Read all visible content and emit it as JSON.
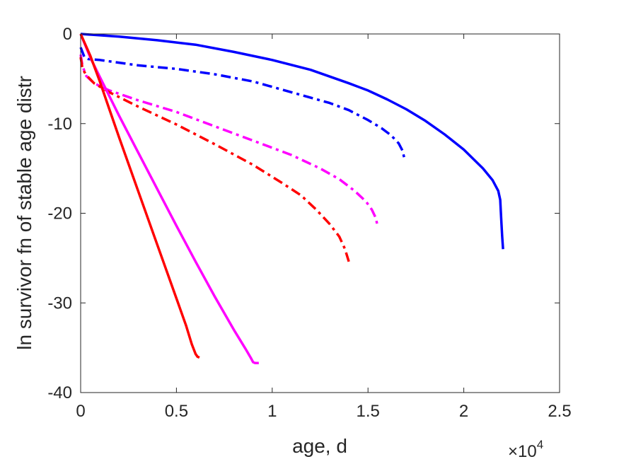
{
  "chart_data": {
    "type": "line",
    "xlabel": "age, d",
    "ylabel": "ln survivor fn of stable age distr",
    "x_exponent_label": "×10",
    "x_exponent_power": "4",
    "xlim": [
      0,
      25000
    ],
    "ylim": [
      -40,
      0
    ],
    "xticks": [
      0,
      5000,
      10000,
      15000,
      20000,
      25000
    ],
    "xtick_labels": [
      "0",
      "0.5",
      "1",
      "1.5",
      "2",
      "2.5"
    ],
    "yticks": [
      0,
      -10,
      -20,
      -30,
      -40
    ],
    "ytick_labels": [
      "0",
      "-10",
      "-20",
      "-30",
      "-40"
    ],
    "grid": false,
    "series": [
      {
        "color": "#0000ff",
        "style": "solid",
        "x": [
          0,
          2000,
          4000,
          6000,
          8000,
          10000,
          12000,
          14000,
          15000,
          16000,
          17000,
          18000,
          19000,
          20000,
          21000,
          21500,
          21800,
          21900,
          21950,
          22000,
          22050
        ],
        "y": [
          0,
          -0.3,
          -0.7,
          -1.2,
          -2.0,
          -2.9,
          -4.0,
          -5.5,
          -6.3,
          -7.3,
          -8.4,
          -9.7,
          -11.2,
          -12.9,
          -15.0,
          -16.3,
          -17.5,
          -18.5,
          -20.5,
          -22.5,
          -24.0
        ]
      },
      {
        "color": "#0000ff",
        "style": "dashdot",
        "x": [
          0,
          200,
          400,
          1000,
          3000,
          5000,
          7000,
          9000,
          11000,
          13000,
          14000,
          15000,
          15700,
          16200,
          16600,
          16800,
          16900
        ],
        "y": [
          -1.5,
          -2.6,
          -2.8,
          -2.9,
          -3.5,
          -3.9,
          -4.5,
          -5.3,
          -6.5,
          -7.7,
          -8.5,
          -9.6,
          -10.5,
          -11.3,
          -12.2,
          -13.0,
          -13.9
        ]
      },
      {
        "color": "#ff00ff",
        "style": "dashdot",
        "x": [
          0,
          100,
          300,
          700,
          1500,
          3000,
          5000,
          7000,
          9000,
          11000,
          12500,
          13500,
          14300,
          14900,
          15200,
          15400,
          15500
        ],
        "y": [
          -2.3,
          -3.6,
          -4.7,
          -5.5,
          -6.3,
          -7.4,
          -8.7,
          -10.3,
          -11.9,
          -13.5,
          -15.0,
          -16.2,
          -17.5,
          -18.7,
          -19.6,
          -20.5,
          -21.4
        ]
      },
      {
        "color": "#ff0000",
        "style": "dashdot",
        "x": [
          0,
          100,
          300,
          700,
          1500,
          3000,
          5000,
          7000,
          9000,
          10500,
          11500,
          12300,
          13000,
          13500,
          13800,
          14000
        ],
        "y": [
          -2.6,
          -3.9,
          -4.6,
          -5.5,
          -6.5,
          -8.1,
          -10.1,
          -12.3,
          -14.6,
          -16.6,
          -18.0,
          -19.6,
          -21.2,
          -22.6,
          -24.0,
          -25.4
        ]
      },
      {
        "color": "#ff00ff",
        "style": "solid",
        "x": [
          0,
          500,
          1000,
          2000,
          3000,
          4000,
          5000,
          6000,
          7000,
          8000,
          8600,
          8900,
          9000,
          9100,
          9300
        ],
        "y": [
          0,
          -2.6,
          -4.8,
          -9.1,
          -13.2,
          -17.3,
          -21.4,
          -25.4,
          -29.3,
          -33.0,
          -35.1,
          -36.2,
          -36.6,
          -36.7,
          -36.7
        ]
      },
      {
        "color": "#ff0000",
        "style": "solid",
        "x": [
          0,
          500,
          1000,
          1500,
          2000,
          3000,
          4000,
          5000,
          5500,
          5800,
          6000,
          6100,
          6200
        ],
        "y": [
          0,
          -2.4,
          -5.3,
          -8.4,
          -11.5,
          -17.5,
          -23.5,
          -29.5,
          -32.5,
          -34.6,
          -35.7,
          -36.0,
          -36.1
        ]
      }
    ]
  }
}
